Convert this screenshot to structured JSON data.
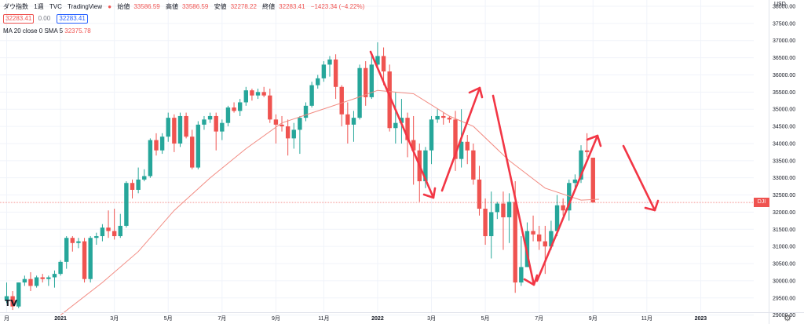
{
  "header": {
    "title": "ダウ指数",
    "interval": "1週",
    "source": "TVC",
    "brand": "TradingView",
    "open_label": "始値",
    "open_value": "33586.59",
    "high_label": "高値",
    "high_value": "33586.59",
    "low_label": "安値",
    "low_value": "32278.22",
    "close_label": "終値",
    "close_value": "32283.41",
    "change": "−1423.34 (−4.22%)",
    "sell_price": "32283.41",
    "spread": "0.00",
    "buy_price": "32283.41",
    "indicator": "MA 20 close 0 SMA 5",
    "indicator_value": "32375.78"
  },
  "axis": {
    "currency": "USD",
    "current_label": "DJI"
  },
  "colors": {
    "up": "#26a69a",
    "down": "#ef5350",
    "ma": "#f28b82",
    "annotation": "#f23645"
  },
  "chart_data": {
    "type": "candlestick",
    "title": "ダウ指数 1週 TVC",
    "ylim": [
      28900,
      38000
    ],
    "y_ticks": [
      29000,
      29500,
      30000,
      30500,
      31000,
      31500,
      32000,
      32500,
      33000,
      33500,
      34000,
      34500,
      35000,
      35500,
      36000,
      36500,
      37000,
      37500,
      38000
    ],
    "y_tick_labels": [
      "29000.00",
      "29500.00",
      "30000.00",
      "30500.00",
      "31000.00",
      "31500.00",
      "32000.00",
      "32500.00",
      "33000.00",
      "33500.00",
      "34000.00",
      "34500.00",
      "35000.00",
      "35500.00",
      "36000.00",
      "36500.00",
      "37000.00",
      "37500.00",
      "38000.00"
    ],
    "x_labels": [
      {
        "label": "月",
        "week": 0
      },
      {
        "label": "2021",
        "week": 9
      },
      {
        "label": "3月",
        "week": 18
      },
      {
        "label": "5月",
        "week": 27
      },
      {
        "label": "7月",
        "week": 36
      },
      {
        "label": "9月",
        "week": 45
      },
      {
        "label": "11月",
        "week": 53
      },
      {
        "label": "2022",
        "week": 62
      },
      {
        "label": "3月",
        "week": 71
      },
      {
        "label": "5月",
        "week": 80
      },
      {
        "label": "7月",
        "week": 89
      },
      {
        "label": "9月",
        "week": 98
      },
      {
        "label": "11月",
        "week": 107
      },
      {
        "label": "2023",
        "week": 116
      }
    ],
    "candles": [
      [
        29450,
        29950,
        29350,
        29550
      ],
      [
        29550,
        29700,
        29150,
        29250
      ],
      [
        29250,
        29950,
        29200,
        29950
      ],
      [
        29950,
        30150,
        29850,
        30050
      ],
      [
        30050,
        30250,
        29700,
        29850
      ],
      [
        29850,
        30150,
        29800,
        30100
      ],
      [
        30100,
        30200,
        29950,
        30050
      ],
      [
        30050,
        30150,
        29850,
        30100
      ],
      [
        30100,
        30300,
        29800,
        30200
      ],
      [
        30200,
        30600,
        30150,
        30550
      ],
      [
        30550,
        31300,
        30350,
        31250
      ],
      [
        31250,
        31300,
        30850,
        31100
      ],
      [
        31100,
        31250,
        30950,
        31150
      ],
      [
        31150,
        31250,
        29950,
        30050
      ],
      [
        30050,
        31300,
        29950,
        31250
      ],
      [
        31250,
        31400,
        31050,
        31300
      ],
      [
        31300,
        31650,
        31150,
        31550
      ],
      [
        31550,
        32050,
        31250,
        31450
      ],
      [
        31450,
        32100,
        31200,
        31300
      ],
      [
        31300,
        31950,
        31250,
        31600
      ],
      [
        31600,
        32900,
        31550,
        32850
      ],
      [
        32850,
        32950,
        32400,
        32650
      ],
      [
        32650,
        33300,
        32550,
        32950
      ],
      [
        32950,
        33250,
        32900,
        33050
      ],
      [
        33050,
        34150,
        33000,
        34100
      ],
      [
        34100,
        34300,
        33650,
        33800
      ],
      [
        33800,
        34300,
        33700,
        34200
      ],
      [
        34200,
        34900,
        34050,
        34750
      ],
      [
        34750,
        34850,
        33750,
        34000
      ],
      [
        34000,
        34900,
        33900,
        34800
      ],
      [
        34800,
        34900,
        34150,
        34200
      ],
      [
        34200,
        34400,
        33250,
        33300
      ],
      [
        33300,
        34650,
        33250,
        34550
      ],
      [
        34550,
        34800,
        34400,
        34700
      ],
      [
        34700,
        34900,
        34600,
        34800
      ],
      [
        34800,
        34900,
        33800,
        34350
      ],
      [
        34350,
        34700,
        34100,
        34600
      ],
      [
        34600,
        35100,
        34500,
        35050
      ],
      [
        35050,
        35200,
        34900,
        34950
      ],
      [
        34950,
        35300,
        34800,
        35200
      ],
      [
        35200,
        35650,
        35100,
        35550
      ],
      [
        35550,
        35600,
        35250,
        35400
      ],
      [
        35400,
        35600,
        35300,
        35500
      ],
      [
        35500,
        35650,
        35350,
        35400
      ],
      [
        35400,
        35600,
        34600,
        34700
      ],
      [
        34700,
        34850,
        34000,
        34550
      ],
      [
        34550,
        34800,
        34350,
        34500
      ],
      [
        34500,
        34700,
        33650,
        34150
      ],
      [
        34150,
        34600,
        33850,
        34400
      ],
      [
        34400,
        34800,
        33700,
        34750
      ],
      [
        34750,
        35200,
        34650,
        35100
      ],
      [
        35100,
        35800,
        35050,
        35700
      ],
      [
        35700,
        36000,
        35600,
        35900
      ],
      [
        35900,
        36400,
        35800,
        36300
      ],
      [
        36300,
        36550,
        35950,
        36450
      ],
      [
        36450,
        36600,
        35300,
        35650
      ],
      [
        35650,
        35700,
        34500,
        34850
      ],
      [
        34850,
        35200,
        34000,
        34550
      ],
      [
        34550,
        34950,
        34050,
        34750
      ],
      [
        34750,
        36300,
        34700,
        36200
      ],
      [
        36200,
        36400,
        35100,
        35350
      ],
      [
        35350,
        36600,
        35300,
        36300
      ],
      [
        36300,
        36950,
        36250,
        36550
      ],
      [
        36550,
        36800,
        35700,
        36100
      ],
      [
        36100,
        36300,
        34350,
        34450
      ],
      [
        34450,
        35500,
        34000,
        34600
      ],
      [
        34600,
        35300,
        34000,
        34750
      ],
      [
        34750,
        34900,
        33600,
        34100
      ],
      [
        34100,
        34800,
        32800,
        33800
      ],
      [
        33800,
        34000,
        32300,
        32900
      ],
      [
        32900,
        33900,
        32700,
        33800
      ],
      [
        33800,
        34800,
        33400,
        34700
      ],
      [
        34700,
        35000,
        34600,
        34800
      ],
      [
        34800,
        34900,
        34550,
        34750
      ],
      [
        34750,
        34800,
        34600,
        34700
      ],
      [
        34700,
        34950,
        33200,
        33550
      ],
      [
        33550,
        35000,
        33300,
        34050
      ],
      [
        34050,
        34250,
        33400,
        33800
      ],
      [
        33800,
        34000,
        32800,
        32950
      ],
      [
        32950,
        33350,
        31900,
        32100
      ],
      [
        32100,
        32400,
        31050,
        31300
      ],
      [
        31300,
        32600,
        30650,
        32000
      ],
      [
        32000,
        32300,
        31800,
        32250
      ],
      [
        32250,
        32600,
        30900,
        31850
      ],
      [
        31850,
        32550,
        31100,
        32300
      ],
      [
        32300,
        32900,
        29650,
        29950
      ],
      [
        29950,
        31300,
        29850,
        30400
      ],
      [
        30400,
        31700,
        30400,
        31450
      ],
      [
        31450,
        31900,
        31150,
        31350
      ],
      [
        31350,
        31600,
        30900,
        31150
      ],
      [
        31150,
        31600,
        30200,
        31000
      ],
      [
        31000,
        31750,
        30900,
        31450
      ],
      [
        31450,
        32500,
        31300,
        32200
      ],
      [
        32200,
        32400,
        31900,
        32050
      ],
      [
        32050,
        32950,
        31750,
        32850
      ],
      [
        32850,
        33100,
        32700,
        32950
      ],
      [
        32950,
        33950,
        32850,
        33800
      ],
      [
        33800,
        34300,
        33600,
        33750
      ],
      [
        33586.59,
        33586.59,
        32278.22,
        32283.41
      ]
    ],
    "ma_series": {
      "name": "MA 20 close 0 SMA 5",
      "points": [
        [
          9,
          29000
        ],
        [
          16,
          29950
        ],
        [
          22,
          30850
        ],
        [
          28,
          32050
        ],
        [
          34,
          33000
        ],
        [
          40,
          33850
        ],
        [
          46,
          34600
        ],
        [
          52,
          34950
        ],
        [
          58,
          35300
        ],
        [
          62,
          35550
        ],
        [
          68,
          35450
        ],
        [
          74,
          34800
        ],
        [
          78,
          34500
        ],
        [
          84,
          33500
        ],
        [
          90,
          32700
        ],
        [
          96,
          32350
        ],
        [
          99,
          32376
        ]
      ]
    },
    "last_value": 32283.41
  }
}
